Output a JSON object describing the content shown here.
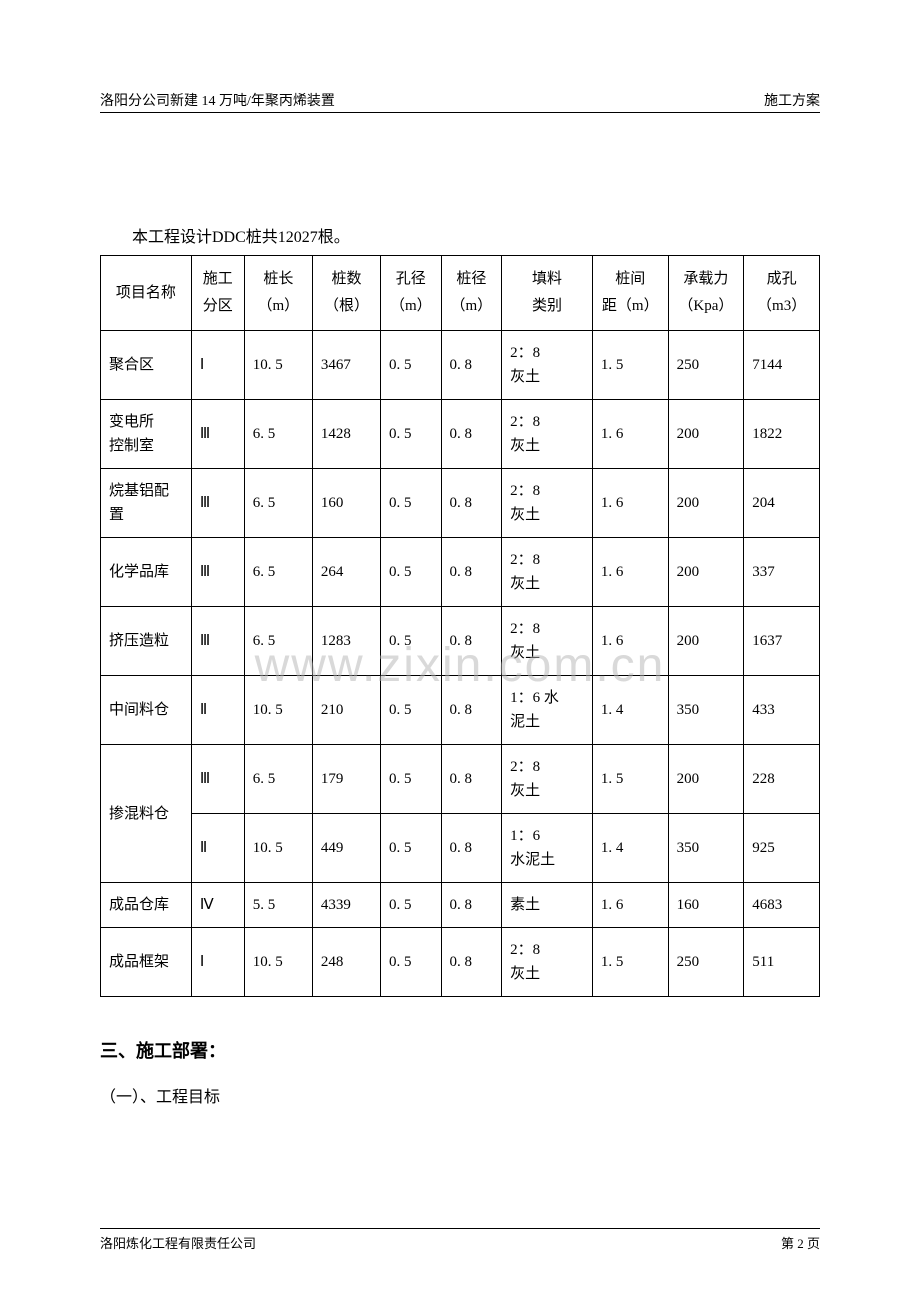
{
  "header": {
    "left": "洛阳分公司新建 14 万吨/年聚丙烯装置",
    "right": "施工方案"
  },
  "intro": "本工程设计DDC桩共12027根。",
  "table": {
    "headers": {
      "name": "项目名称",
      "zone_l1": "施工",
      "zone_l2": "分区",
      "length_l1": "桩长",
      "length_l2": "（m）",
      "count_l1": "桩数",
      "count_l2": "（根）",
      "hole_l1": "孔径",
      "hole_l2": "（m）",
      "pile_l1": "桩径",
      "pile_l2": "（m）",
      "fill_l1": "填料",
      "fill_l2": "类别",
      "spacing_l1": "桩间",
      "spacing_l2": "距（m）",
      "bearing_l1": "承载力",
      "bearing_l2": "（Kpa）",
      "vol_l1": "成孔",
      "vol_l2": "（m3）"
    },
    "rows": [
      {
        "name": "聚合区",
        "zone": "Ⅰ",
        "length": "10. 5",
        "count": "3467",
        "hole": "0. 5",
        "pile": "0. 8",
        "fill_l1": "2：8",
        "fill_l2": "灰土",
        "spacing": "1. 5",
        "bearing": "250",
        "vol": "7144",
        "rowspan": 1
      },
      {
        "name_l1": "变电所",
        "name_l2": "控制室",
        "zone": "Ⅲ",
        "length": "6. 5",
        "count": "1428",
        "hole": "0. 5",
        "pile": "0. 8",
        "fill_l1": "2：8",
        "fill_l2": "灰土",
        "spacing": "1. 6",
        "bearing": "200",
        "vol": "1822",
        "rowspan": 1,
        "multiname": true
      },
      {
        "name_l1": "烷基铝配",
        "name_l2": "置",
        "zone": "Ⅲ",
        "length": "6. 5",
        "count": "160",
        "hole": "0. 5",
        "pile": "0. 8",
        "fill_l1": "2：8",
        "fill_l2": "灰土",
        "spacing": "1. 6",
        "bearing": "200",
        "vol": "204",
        "rowspan": 1,
        "multiname": true
      },
      {
        "name": "化学品库",
        "zone": "Ⅲ",
        "length": "6. 5",
        "count": "264",
        "hole": "0. 5",
        "pile": "0. 8",
        "fill_l1": "2：8",
        "fill_l2": "灰土",
        "spacing": "1. 6",
        "bearing": "200",
        "vol": "337",
        "rowspan": 1
      },
      {
        "name": "挤压造粒",
        "zone": "Ⅲ",
        "length": "6. 5",
        "count": "1283",
        "hole": "0. 5",
        "pile": "0. 8",
        "fill_l1": "2：8",
        "fill_l2": "灰土",
        "spacing": "1. 6",
        "bearing": "200",
        "vol": "1637",
        "rowspan": 1
      },
      {
        "name": "中间料仓",
        "zone": "Ⅱ",
        "length": "10. 5",
        "count": "210",
        "hole": "0. 5",
        "pile": "0. 8",
        "fill_l1": "1：6 水",
        "fill_l2": "泥土",
        "spacing": "1. 4",
        "bearing": "350",
        "vol": "433",
        "rowspan": 1
      },
      {
        "name": "掺混料仓",
        "zone": "Ⅲ",
        "length": "6. 5",
        "count": "179",
        "hole": "0. 5",
        "pile": "0. 8",
        "fill_l1": "2：8",
        "fill_l2": "灰土",
        "spacing": "1. 5",
        "bearing": "200",
        "vol": "228",
        "rowspan": 2
      },
      {
        "skipname": true,
        "zone": "Ⅱ",
        "length": "10. 5",
        "count": "449",
        "hole": "0. 5",
        "pile": "0. 8",
        "fill_l1": "1：6",
        "fill_l2": "水泥土",
        "spacing": "1. 4",
        "bearing": "350",
        "vol": "925"
      },
      {
        "name": "成品仓库",
        "zone": "Ⅳ",
        "length": "5. 5",
        "count": "4339",
        "hole": "0. 5",
        "pile": "0. 8",
        "fill_single": "素土",
        "spacing": "1. 6",
        "bearing": "160",
        "vol": "4683",
        "rowspan": 1
      },
      {
        "name": "成品框架",
        "zone": "Ⅰ",
        "length": "10. 5",
        "count": "248",
        "hole": "0. 5",
        "pile": "0. 8",
        "fill_l1": "2：8",
        "fill_l2": "灰土",
        "spacing": "1. 5",
        "bearing": "250",
        "vol": "511",
        "rowspan": 1
      }
    ]
  },
  "watermark": "www.zixin.com.cn",
  "section_title": "三、施工部署：",
  "sub_section": "（一）、工程目标",
  "footer": {
    "left": "洛阳炼化工程有限责任公司",
    "right": "第 2 页"
  }
}
